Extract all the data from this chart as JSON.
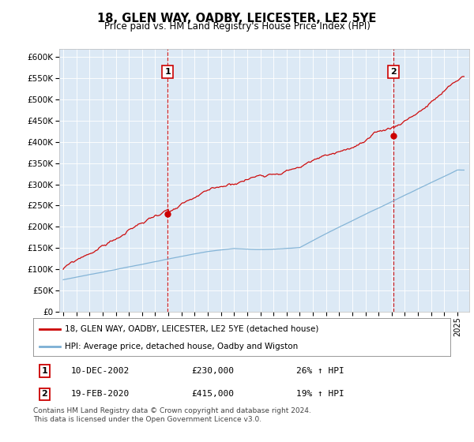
{
  "title": "18, GLEN WAY, OADBY, LEICESTER, LE2 5YE",
  "subtitle": "Price paid vs. HM Land Registry's House Price Index (HPI)",
  "bg_color": "#dce9f5",
  "red_line_color": "#cc0000",
  "blue_line_color": "#7bafd4",
  "vline_color": "#cc0000",
  "marker1_year": 2002.95,
  "marker1_value": 230000,
  "marker2_year": 2020.12,
  "marker2_value": 415000,
  "ylim": [
    0,
    620000
  ],
  "yticks": [
    0,
    50000,
    100000,
    150000,
    200000,
    250000,
    300000,
    350000,
    400000,
    450000,
    500000,
    550000,
    600000
  ],
  "legend_label_red": "18, GLEN WAY, OADBY, LEICESTER, LE2 5YE (detached house)",
  "legend_label_blue": "HPI: Average price, detached house, Oadby and Wigston",
  "annotation1_date": "10-DEC-2002",
  "annotation1_price": "£230,000",
  "annotation1_hpi": "26% ↑ HPI",
  "annotation2_date": "19-FEB-2020",
  "annotation2_price": "£415,000",
  "annotation2_hpi": "19% ↑ HPI",
  "footer": "Contains HM Land Registry data © Crown copyright and database right 2024.\nThis data is licensed under the Open Government Licence v3.0."
}
